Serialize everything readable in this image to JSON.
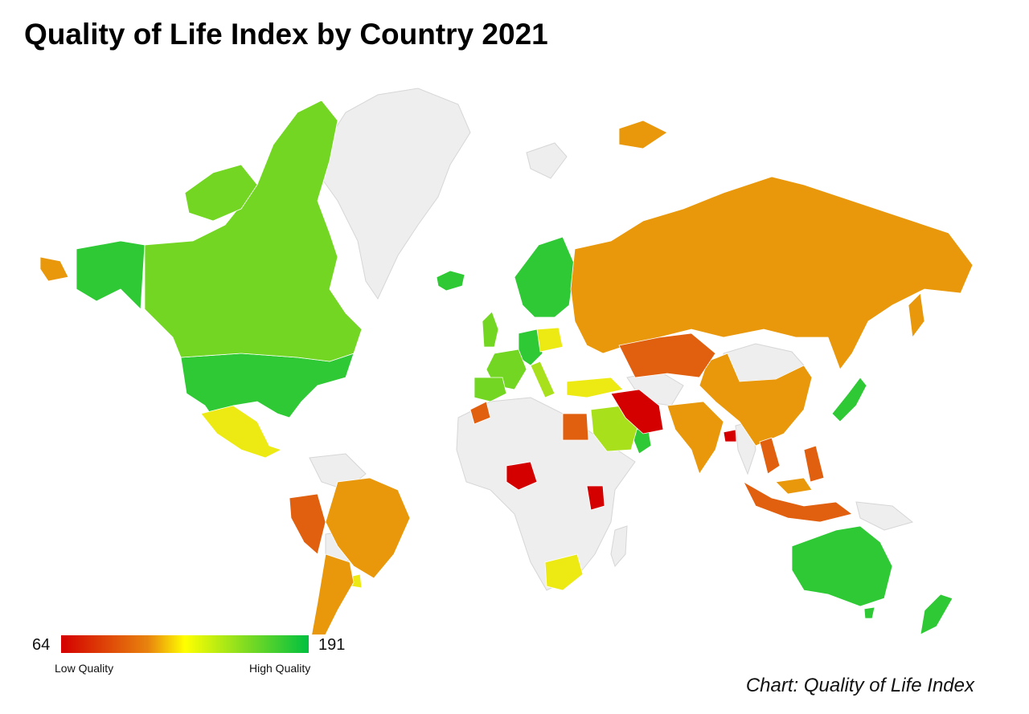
{
  "title": "Quality of Life Index by Country 2021",
  "source": "Chart: Quality of Life Index",
  "legend": {
    "min": "64",
    "max": "191",
    "low_label": "Low Quality",
    "high_label": "High Quality",
    "colors": [
      "#d40000",
      "#e8830e",
      "#ffff00",
      "#7edb22",
      "#00c040"
    ]
  },
  "colors": {
    "no_data": "#eeeeee",
    "very_high": "#2ec935",
    "high": "#72d622",
    "upper_mid": "#a9e01c",
    "mid": "#ecea12",
    "lower_mid": "#e8980a",
    "low": "#e06010",
    "very_low": "#d40000"
  }
}
